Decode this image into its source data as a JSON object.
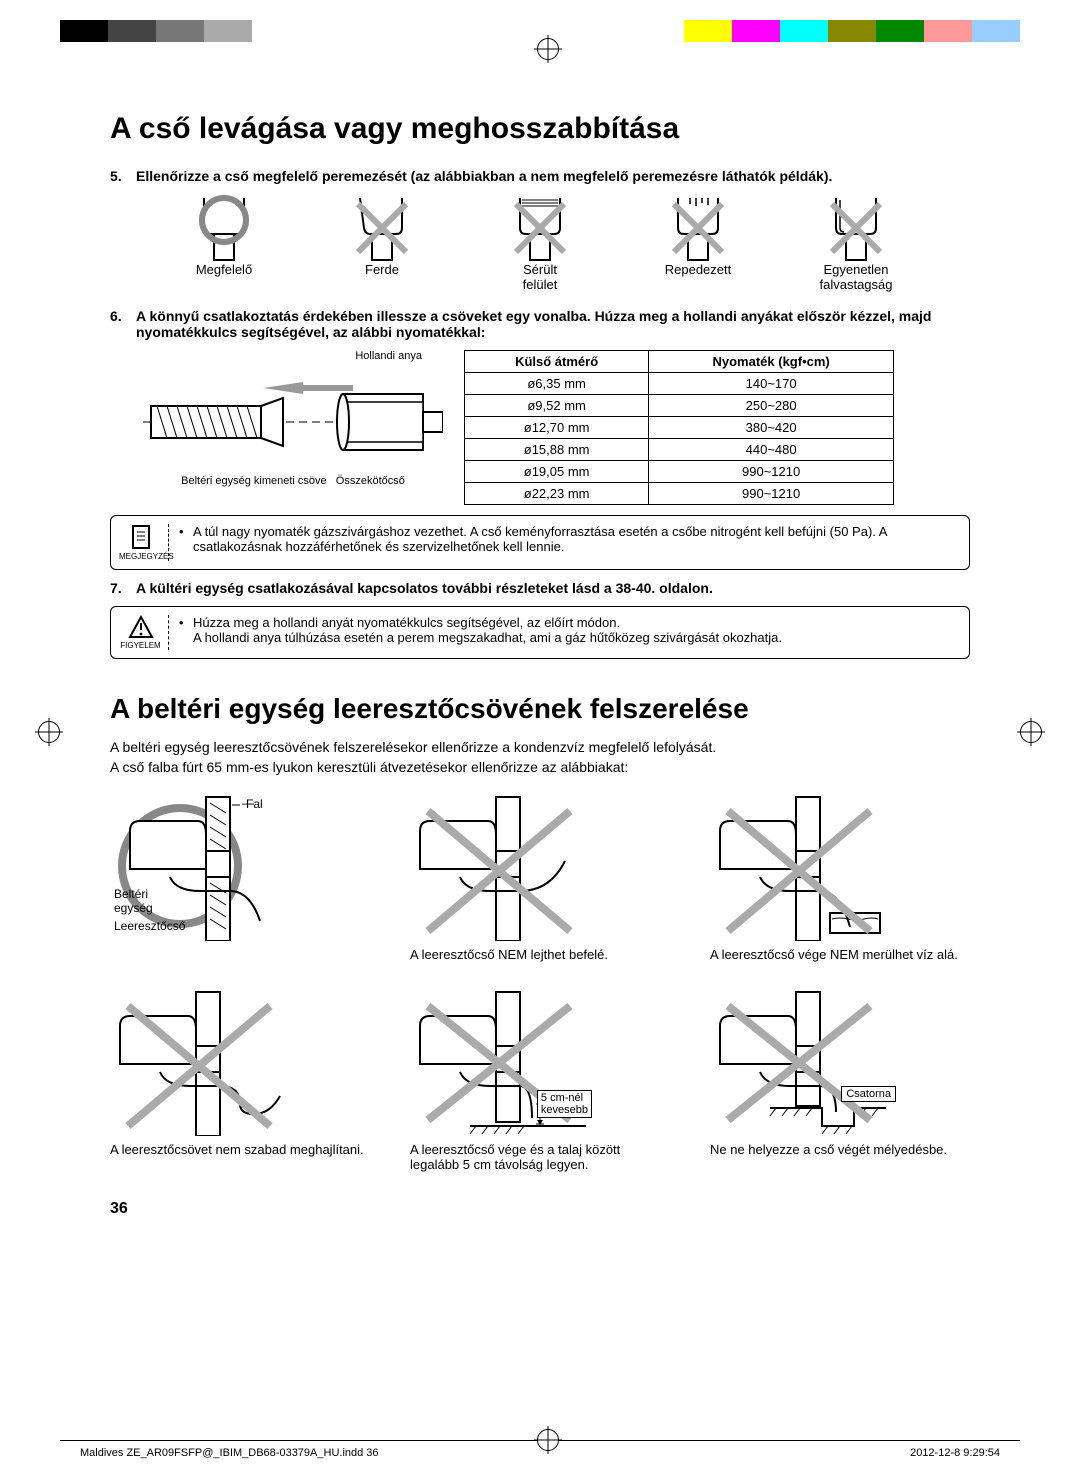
{
  "color_bar": [
    "#000000",
    "#444444",
    "#777777",
    "#aaaaaa",
    "#ffffff",
    "#ffffff",
    "#ffffff",
    "#ffffff",
    "#ffffff",
    "#ffff00",
    "#ff00ff",
    "#00ffff",
    "#888800",
    "#008800",
    "#ff9999",
    "#99ccff"
  ],
  "heading1": "A cső levágása vagy meghosszabbítása",
  "step5": "Ellenőrizze a cső megfelelő peremezését (az alábbiakban a nem megfelelő peremezésre láthatók példák).",
  "flare_labels": {
    "ok": "Megfelelő",
    "inclined": "Ferde",
    "damaged": "Sérült\nfelület",
    "cracked": "Repedezett",
    "uneven": "Egyenetlen\nfalvastagság"
  },
  "step6": "A könnyű csatlakoztatás érdekében illessze a csöveket egy vonalba. Húzza meg a hollandi anyákat először kézzel, majd nyomatékkulcs segítségével, az alábbi nyomatékkal:",
  "pipe_labels": {
    "flare_nut": "Hollandi anya",
    "outlet": "Beltéri egység kimeneti csöve",
    "conn": "Összekötőcső"
  },
  "torque_table": {
    "headers": [
      "Külső átmérő",
      "Nyomaték (kgf•cm)"
    ],
    "rows": [
      [
        "ø6,35 mm",
        "140~170"
      ],
      [
        "ø9,52 mm",
        "250~280"
      ],
      [
        "ø12,70 mm",
        "380~420"
      ],
      [
        "ø15,88 mm",
        "440~480"
      ],
      [
        "ø19,05 mm",
        "990~1210"
      ],
      [
        "ø22,23 mm",
        "990~1210"
      ]
    ]
  },
  "note1_label": "MEGJEGYZÉS",
  "note1_text": "A túl nagy nyomaték gázszivárgáshoz vezethet. A cső keményforrasztása esetén a csőbe nitrogént kell befújni (50 Pa).  A csatlakozásnak hozzáférhetőnek és szervizelhetőnek kell lennie.",
  "step7": "A kültéri egység csatlakozásával kapcsolatos további részleteket lásd a 38-40. oldalon.",
  "warn_label": "FIGYELEM",
  "warn_line1": "Húzza meg a hollandi anyát nyomatékkulcs segítségével, az előírt módon.",
  "warn_line2": "A hollandi anya túlhúzása esetén a perem megszakadhat, ami a gáz hűtőközeg szivárgását okozhatja.",
  "heading2": "A beltéri egység leeresztőcsövének felszerelése",
  "intro2a": "A beltéri egység leeresztőcsövének felszerelésekor ellenőrizze a kondenzvíz megfelelő lefolyását.",
  "intro2b": "A cső falba fúrt 65 mm-es lyukon keresztüli átvezetésekor ellenőrizze az alábbiakat:",
  "drain": {
    "wall": "Fal",
    "indoor": "Beltéri\negység",
    "hose": "Leeresztőcső",
    "cap2": "A leeresztőcső NEM lejthet befelé.",
    "cap3": "A leeresztőcső vége NEM merülhet víz alá.",
    "cap4": "A leeresztőcsövet nem szabad meghajlítani.",
    "cap5": "A leeresztőcső vége és a talaj között legalább 5 cm távolság legyen.",
    "cap5_label": "5 cm-nél\nkevesebb",
    "cap6": "Ne ne helyezze a cső végét mélyedésbe.",
    "cap6_label": "Csatorna"
  },
  "page_number": "36",
  "footer_file": "Maldives ZE_AR09FSFP@_IBIM_DB68-03379A_HU.indd   36",
  "footer_date": "2012-12-8   9:29:54"
}
